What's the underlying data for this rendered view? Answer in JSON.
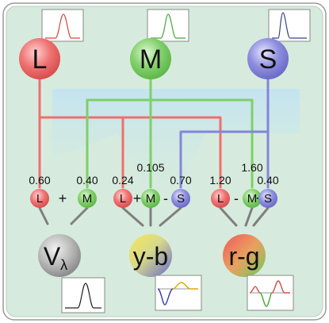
{
  "cones": {
    "L": {
      "label": "L",
      "color": "#ef6f6f"
    },
    "M": {
      "label": "M",
      "color": "#7fcf6a"
    },
    "S": {
      "label": "S",
      "color": "#8585d9"
    }
  },
  "coefficients": {
    "v_l": "0.60",
    "v_m": "0.40",
    "yb_l": "0.24",
    "yb_m": "0.105",
    "yb_s": "0.70",
    "rg_l": "1.20",
    "rg_m": "1.60",
    "rg_s": "0.40"
  },
  "nodes": {
    "v_l": "L",
    "v_op": "+",
    "v_m": "M",
    "yb_l": "L",
    "yb_op1": "+",
    "yb_m": "M",
    "yb_op2": "-",
    "yb_s": "S",
    "rg_l": "L",
    "rg_op1": "-",
    "rg_m": "M",
    "rg_op2": "+",
    "rg_s": "S"
  },
  "outputs": {
    "v": {
      "label": "V",
      "subscript": "λ"
    },
    "yb": {
      "label": "y-b"
    },
    "rg": {
      "label": "r-g"
    }
  },
  "colors": {
    "background": "#d6ebdd",
    "L": "#ef6f6f",
    "M": "#7fcf6a",
    "S": "#8585d9",
    "shadow": "#b9def3"
  }
}
